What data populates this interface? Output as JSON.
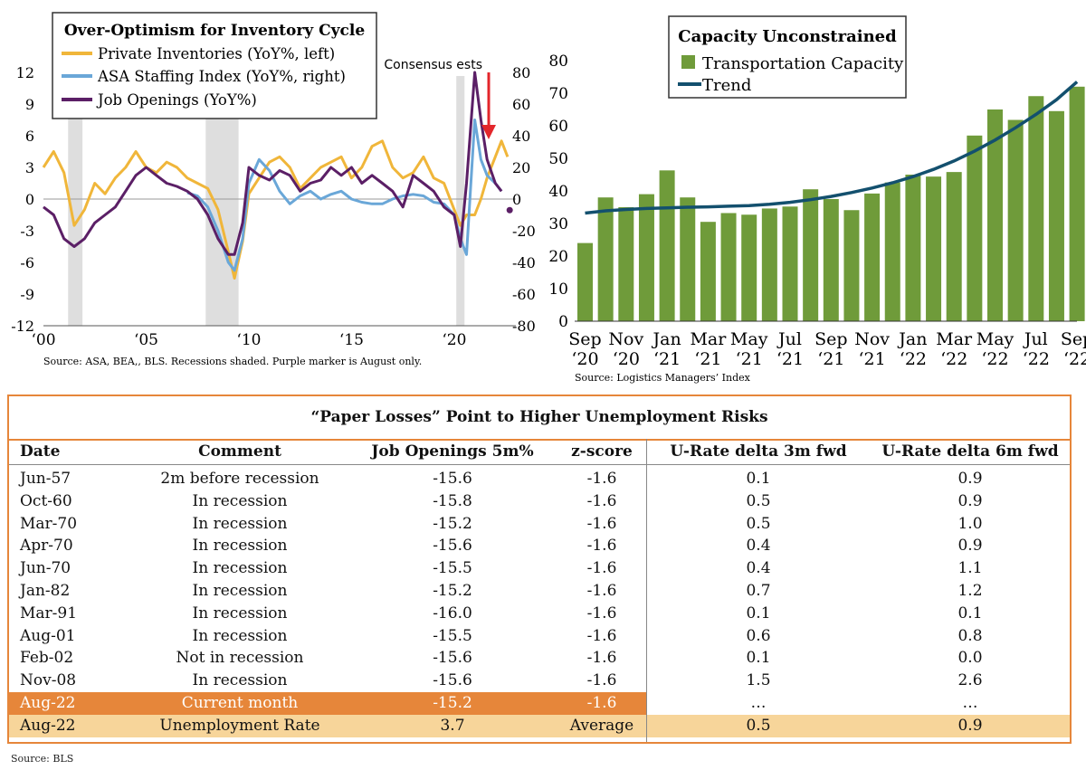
{
  "left_chart": {
    "legend_title": "Over-Optimism for Inventory Cycle",
    "legend": [
      "Private Inventories (YoY%, left)",
      "ASA Staffing Index (YoY%, right)",
      "Job Openings (YoY%)"
    ],
    "annotation": "Consensus ests",
    "left_ticks": [
      "12",
      "9",
      "6",
      "3",
      "0",
      "-3",
      "-6",
      "-9",
      "-12"
    ],
    "right_ticks": [
      "80",
      "60",
      "40",
      "20",
      "0",
      "-20",
      "-40",
      "-60",
      "-80"
    ],
    "x_ticks": [
      "‘00",
      "‘05",
      "‘10",
      "‘15",
      "‘20"
    ],
    "source": "Source: ASA, BEA,, BLS. Recessions shaded. Purple marker is August only.",
    "colors": {
      "inventories": "#f0b63a",
      "asa": "#6aa7d8",
      "openings": "#5b1f66",
      "recession": "#dedede",
      "arrow": "#e3262b"
    }
  },
  "right_chart": {
    "legend_title": "Capacity Unconstrained",
    "legend": [
      "Transportation Capacity",
      "Trend"
    ],
    "y_ticks": [
      "80",
      "70",
      "60",
      "50",
      "40",
      "30",
      "20",
      "10",
      "0"
    ],
    "x_ticks_top": [
      "Sep",
      "Nov",
      "Jan",
      "Mar",
      "May",
      "Jul",
      "Sep",
      "Nov",
      "Jan",
      "Mar",
      "May",
      "Jul",
      "Sep"
    ],
    "x_ticks_bottom": [
      "‘20",
      "‘20",
      "‘21",
      "‘21",
      "‘21",
      "‘21",
      "‘21",
      "‘21",
      "‘22",
      "‘22",
      "‘22",
      "‘22",
      "‘22"
    ],
    "source": "Source: Logistics Managers’ Index",
    "colors": {
      "bar": "#6f9b3a",
      "trend": "#13506e"
    }
  },
  "table": {
    "title": "“Paper Losses” Point to Higher Unemployment Risks",
    "headers": [
      "Date",
      "Comment",
      "Job Openings 5m%",
      "z-score",
      "U-Rate delta 3m fwd",
      "U-Rate delta 6m fwd"
    ],
    "rows": [
      [
        "Jun-57",
        "2m before recession",
        "-15.6",
        "-1.6",
        "0.1",
        "0.9"
      ],
      [
        "Oct-60",
        "In recession",
        "-15.8",
        "-1.6",
        "0.5",
        "0.9"
      ],
      [
        "Mar-70",
        "In recession",
        "-15.2",
        "-1.6",
        "0.5",
        "1.0"
      ],
      [
        "Apr-70",
        "In recession",
        "-15.6",
        "-1.6",
        "0.4",
        "0.9"
      ],
      [
        "Jun-70",
        "In recession",
        "-15.5",
        "-1.6",
        "0.4",
        "1.1"
      ],
      [
        "Jan-82",
        "In recession",
        "-15.2",
        "-1.6",
        "0.7",
        "1.2"
      ],
      [
        "Mar-91",
        "In recession",
        "-16.0",
        "-1.6",
        "0.1",
        "0.1"
      ],
      [
        "Aug-01",
        "In recession",
        "-15.5",
        "-1.6",
        "0.6",
        "0.8"
      ],
      [
        "Feb-02",
        "Not in recession",
        "-15.6",
        "-1.6",
        "0.1",
        "0.0"
      ],
      [
        "Nov-08",
        "In recession",
        "-15.6",
        "-1.6",
        "1.5",
        "2.6"
      ],
      [
        "Aug-22",
        "Current month",
        "-15.2",
        "-1.6",
        "…",
        "…"
      ],
      [
        "Aug-22",
        "Unemployment Rate",
        "3.7",
        "Average",
        "0.5",
        "0.9"
      ]
    ],
    "colors": {
      "border": "#e6863a",
      "current": "#e6863a",
      "average": "#f7d59a"
    }
  },
  "footer_source": "Source: BLS",
  "chart_data": [
    {
      "type": "line",
      "x_range": [
        2000,
        2023
      ],
      "ylim_left": [
        -12,
        12
      ],
      "ylim_right": [
        -80,
        80
      ],
      "recessions": [
        [
          2001.2,
          2001.9
        ],
        [
          2007.9,
          2009.5
        ],
        [
          2020.1,
          2020.5
        ]
      ],
      "series": [
        {
          "name": "Private Inventories (YoY%, left)",
          "axis": "left",
          "x": [
            2000,
            2000.5,
            2001,
            2001.5,
            2002,
            2002.5,
            2003,
            2003.5,
            2004,
            2004.5,
            2005,
            2005.5,
            2006,
            2006.5,
            2007,
            2007.5,
            2008,
            2008.5,
            2009,
            2009.3,
            2009.7,
            2010,
            2010.5,
            2011,
            2011.5,
            2012,
            2012.5,
            2013,
            2013.5,
            2014,
            2014.5,
            2015,
            2015.5,
            2016,
            2016.5,
            2017,
            2017.5,
            2018,
            2018.5,
            2019,
            2019.5,
            2020,
            2020.3,
            2020.6,
            2021,
            2021.3,
            2021.6,
            2022,
            2022.3,
            2022.6
          ],
          "y": [
            3.0,
            4.5,
            2.5,
            -2.5,
            -1.0,
            1.5,
            0.5,
            2.0,
            3.0,
            4.5,
            3.0,
            2.5,
            3.5,
            3.0,
            2.0,
            1.5,
            1.0,
            -1.0,
            -5.0,
            -7.5,
            -4.0,
            0.5,
            2.0,
            3.5,
            4.0,
            3.0,
            1.0,
            2.0,
            3.0,
            3.5,
            4.0,
            2.0,
            3.0,
            5.0,
            5.5,
            3.0,
            2.0,
            2.5,
            4.0,
            2.0,
            1.5,
            -1.0,
            -2.5,
            -1.5,
            -1.5,
            0.0,
            2.0,
            4.0,
            5.5,
            4.0
          ]
        },
        {
          "name": "ASA Staffing Index (YoY%, right)",
          "axis": "right",
          "x": [
            2007,
            2007.5,
            2008,
            2008.5,
            2009,
            2009.3,
            2009.7,
            2010,
            2010.5,
            2011,
            2011.5,
            2012,
            2012.5,
            2013,
            2013.5,
            2014,
            2014.5,
            2015,
            2015.5,
            2016,
            2016.5,
            2017,
            2017.5,
            2018,
            2018.5,
            2019,
            2019.5,
            2020,
            2020.3,
            2020.6,
            2021,
            2021.3,
            2021.6,
            2022,
            2022.3
          ],
          "y": [
            4,
            2,
            -5,
            -20,
            -40,
            -45,
            -25,
            10,
            25,
            18,
            5,
            -3,
            2,
            5,
            0,
            3,
            5,
            0,
            -2,
            -3,
            -3,
            0,
            2,
            3,
            2,
            -2,
            -3,
            -10,
            -25,
            -35,
            50,
            25,
            15,
            10,
            5
          ]
        },
        {
          "name": "Job Openings (YoY%)",
          "axis": "right",
          "x": [
            2000,
            2000.5,
            2001,
            2001.5,
            2002,
            2002.5,
            2003,
            2003.5,
            2004,
            2004.5,
            2005,
            2005.5,
            2006,
            2006.5,
            2007,
            2007.5,
            2008,
            2008.5,
            2009,
            2009.3,
            2009.7,
            2010,
            2010.5,
            2011,
            2011.5,
            2012,
            2012.5,
            2013,
            2013.5,
            2014,
            2014.5,
            2015,
            2015.5,
            2016,
            2016.5,
            2017,
            2017.5,
            2018,
            2018.5,
            2019,
            2019.5,
            2020,
            2020.3,
            2020.6,
            2021,
            2021.3,
            2021.6,
            2022,
            2022.3
          ],
          "y": [
            -5,
            -10,
            -25,
            -30,
            -25,
            -15,
            -10,
            -5,
            5,
            15,
            20,
            15,
            10,
            8,
            5,
            0,
            -10,
            -25,
            -35,
            -35,
            -15,
            20,
            15,
            12,
            18,
            15,
            5,
            10,
            12,
            20,
            15,
            20,
            10,
            15,
            10,
            5,
            -5,
            15,
            10,
            5,
            -5,
            -10,
            -30,
            10,
            80,
            50,
            25,
            10,
            5
          ]
        },
        {
          "name": "Job Openings August marker",
          "axis": "right",
          "x": [
            2022.7
          ],
          "y": [
            -7
          ]
        }
      ]
    },
    {
      "type": "bar",
      "categories": [
        "Sep-20",
        "Oct-20",
        "Nov-20",
        "Dec-20",
        "Jan-21",
        "Feb-21",
        "Mar-21",
        "Apr-21",
        "May-21",
        "Jun-21",
        "Jul-21",
        "Aug-21",
        "Sep-21",
        "Oct-21",
        "Nov-21",
        "Dec-21",
        "Jan-22",
        "Feb-22",
        "Mar-22",
        "Apr-22",
        "May-22",
        "Jun-22",
        "Jul-22",
        "Aug-22",
        "Sep-22"
      ],
      "series": [
        {
          "name": "Transportation Capacity",
          "values": [
            24.0,
            38.0,
            35.0,
            39.0,
            46.3,
            38.0,
            30.5,
            33.2,
            32.7,
            34.6,
            35.2,
            40.5,
            37.5,
            34.1,
            39.2,
            42.6,
            45.0,
            44.4,
            45.8,
            57.0,
            65.0,
            61.8,
            69.1,
            64.5,
            72.0
          ]
        },
        {
          "name": "Trend",
          "values": [
            33.2,
            33.9,
            34.3,
            34.6,
            34.8,
            35.0,
            35.1,
            35.3,
            35.5,
            35.9,
            36.5,
            37.3,
            38.3,
            39.5,
            40.9,
            42.5,
            44.4,
            46.6,
            49.2,
            52.2,
            55.6,
            59.4,
            63.5,
            68.0,
            73.5
          ]
        }
      ],
      "ylim": [
        0,
        80
      ]
    }
  ]
}
